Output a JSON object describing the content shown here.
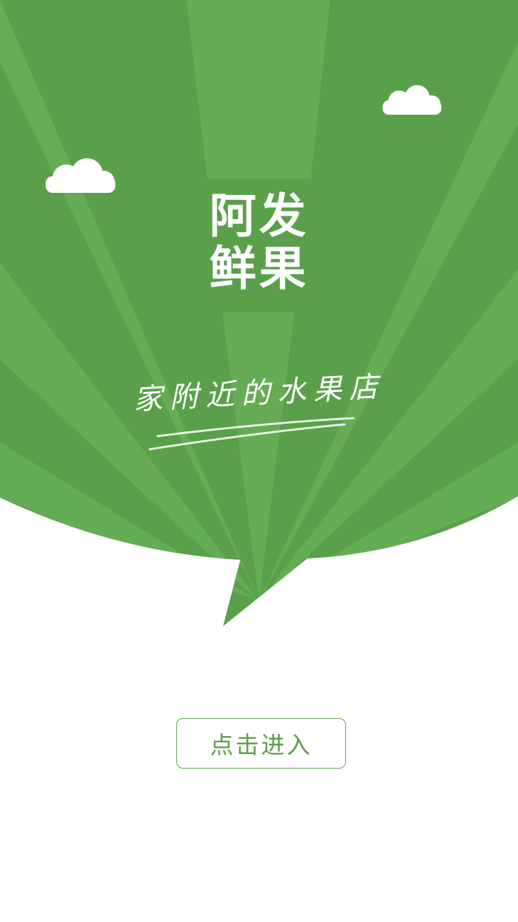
{
  "splash": {
    "title_line1": "阿发",
    "title_line2": "鲜果",
    "tagline": "家附近的水果店",
    "enter_button_label": "点击进入"
  },
  "theme": {
    "brand_green": "#5aa04a",
    "ray_green": "#67ae57",
    "background": "#ffffff",
    "text_on_green": "#ffffff"
  },
  "icons": {
    "left_cloud": "cloud-icon",
    "right_cloud": "cloud-icon"
  }
}
